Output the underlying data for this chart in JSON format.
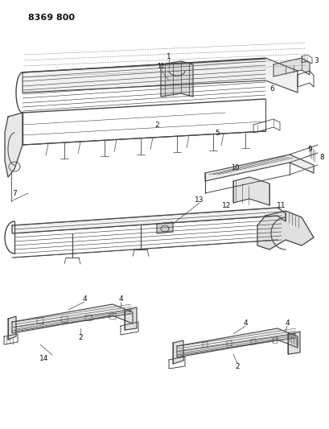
{
  "title": "8369 800",
  "bg": "#ffffff",
  "lc": "#444444",
  "tc": "#111111",
  "fig_w": 4.1,
  "fig_h": 5.33,
  "dpi": 100
}
